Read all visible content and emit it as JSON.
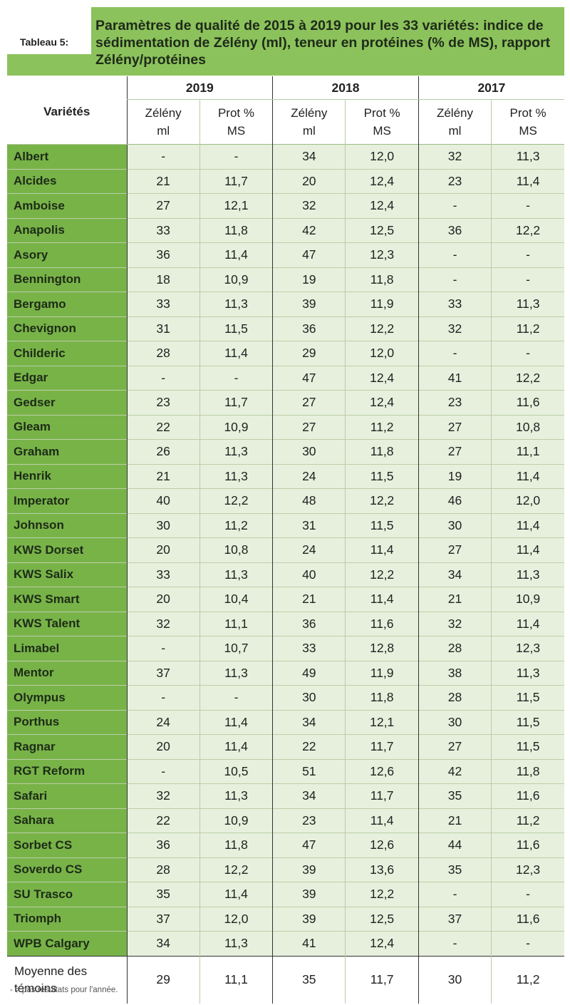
{
  "tab_label": "Tableau 5:",
  "title": "Paramètres de qualité de 2015 à 2019 pour les 33 variétés: indice de sédimentation de Zélény (ml), teneur en protéines (% de MS), rapport Zélény/protéines",
  "columns": {
    "variety_header": "Variétés",
    "years": [
      "2019",
      "2018",
      "2017"
    ],
    "sub_a_line1": "Zélény",
    "sub_a_line2": "ml",
    "sub_b_line1": "Prot %",
    "sub_b_line2": "MS"
  },
  "rows": [
    {
      "name": "Albert",
      "v": [
        "-",
        "-",
        "34",
        "12,0",
        "32",
        "11,3"
      ]
    },
    {
      "name": "Alcides",
      "v": [
        "21",
        "11,7",
        "20",
        "12,4",
        "23",
        "11,4"
      ]
    },
    {
      "name": "Amboise",
      "v": [
        "27",
        "12,1",
        "32",
        "12,4",
        "-",
        "-"
      ]
    },
    {
      "name": "Anapolis",
      "v": [
        "33",
        "11,8",
        "42",
        "12,5",
        "36",
        "12,2"
      ]
    },
    {
      "name": "Asory",
      "v": [
        "36",
        "11,4",
        "47",
        "12,3",
        "-",
        "-"
      ]
    },
    {
      "name": "Bennington",
      "v": [
        "18",
        "10,9",
        "19",
        "11,8",
        "-",
        "-"
      ]
    },
    {
      "name": "Bergamo",
      "v": [
        "33",
        "11,3",
        "39",
        "11,9",
        "33",
        "11,3"
      ]
    },
    {
      "name": "Chevignon",
      "v": [
        "31",
        "11,5",
        "36",
        "12,2",
        "32",
        "11,2"
      ]
    },
    {
      "name": "Childeric",
      "v": [
        "28",
        "11,4",
        "29",
        "12,0",
        "-",
        "-"
      ]
    },
    {
      "name": "Edgar",
      "v": [
        "-",
        "-",
        "47",
        "12,4",
        "41",
        "12,2"
      ]
    },
    {
      "name": "Gedser",
      "v": [
        "23",
        "11,7",
        "27",
        "12,4",
        "23",
        "11,6"
      ]
    },
    {
      "name": "Gleam",
      "v": [
        "22",
        "10,9",
        "27",
        "11,2",
        "27",
        "10,8"
      ]
    },
    {
      "name": "Graham",
      "v": [
        "26",
        "11,3",
        "30",
        "11,8",
        "27",
        "11,1"
      ]
    },
    {
      "name": "Henrik",
      "v": [
        "21",
        "11,3",
        "24",
        "11,5",
        "19",
        "11,4"
      ]
    },
    {
      "name": "Imperator",
      "v": [
        "40",
        "12,2",
        "48",
        "12,2",
        "46",
        "12,0"
      ]
    },
    {
      "name": "Johnson",
      "v": [
        "30",
        "11,2",
        "31",
        "11,5",
        "30",
        "11,4"
      ]
    },
    {
      "name": "KWS Dorset",
      "v": [
        "20",
        "10,8",
        "24",
        "11,4",
        "27",
        "11,4"
      ]
    },
    {
      "name": "KWS Salix",
      "v": [
        "33",
        "11,3",
        "40",
        "12,2",
        "34",
        "11,3"
      ]
    },
    {
      "name": "KWS Smart",
      "v": [
        "20",
        "10,4",
        "21",
        "11,4",
        "21",
        "10,9"
      ]
    },
    {
      "name": "KWS Talent",
      "v": [
        "32",
        "11,1",
        "36",
        "11,6",
        "32",
        "11,4"
      ]
    },
    {
      "name": "Limabel",
      "v": [
        "-",
        "10,7",
        "33",
        "12,8",
        "28",
        "12,3"
      ]
    },
    {
      "name": "Mentor",
      "v": [
        "37",
        "11,3",
        "49",
        "11,9",
        "38",
        "11,3"
      ]
    },
    {
      "name": "Olympus",
      "v": [
        "-",
        "-",
        "30",
        "11,8",
        "28",
        "11,5"
      ]
    },
    {
      "name": "Porthus",
      "v": [
        "24",
        "11,4",
        "34",
        "12,1",
        "30",
        "11,5"
      ]
    },
    {
      "name": "Ragnar",
      "v": [
        "20",
        "11,4",
        "22",
        "11,7",
        "27",
        "11,5"
      ]
    },
    {
      "name": "RGT Reform",
      "v": [
        "-",
        "10,5",
        "51",
        "12,6",
        "42",
        "11,8"
      ]
    },
    {
      "name": "Safari",
      "v": [
        "32",
        "11,3",
        "34",
        "11,7",
        "35",
        "11,6"
      ]
    },
    {
      "name": "Sahara",
      "v": [
        "22",
        "10,9",
        "23",
        "11,4",
        "21",
        "11,2"
      ]
    },
    {
      "name": "Sorbet CS",
      "v": [
        "36",
        "11,8",
        "47",
        "12,6",
        "44",
        "11,6"
      ]
    },
    {
      "name": "Soverdo CS",
      "v": [
        "28",
        "12,2",
        "39",
        "13,6",
        "35",
        "12,3"
      ]
    },
    {
      "name": "SU Trasco",
      "v": [
        "35",
        "11,4",
        "39",
        "12,2",
        "-",
        "-"
      ]
    },
    {
      "name": "Triomph",
      "v": [
        "37",
        "12,0",
        "39",
        "12,5",
        "37",
        "11,6"
      ]
    },
    {
      "name": "WPB Calgary",
      "v": [
        "34",
        "11,3",
        "41",
        "12,4",
        "-",
        "-"
      ]
    }
  ],
  "footer": {
    "label_line1": "Moyenne des",
    "label_line2": "témoins",
    "v": [
      "29",
      "11,1",
      "35",
      "11,7",
      "30",
      "11,2"
    ]
  },
  "footnote": "- = pas résultats pour l'année."
}
